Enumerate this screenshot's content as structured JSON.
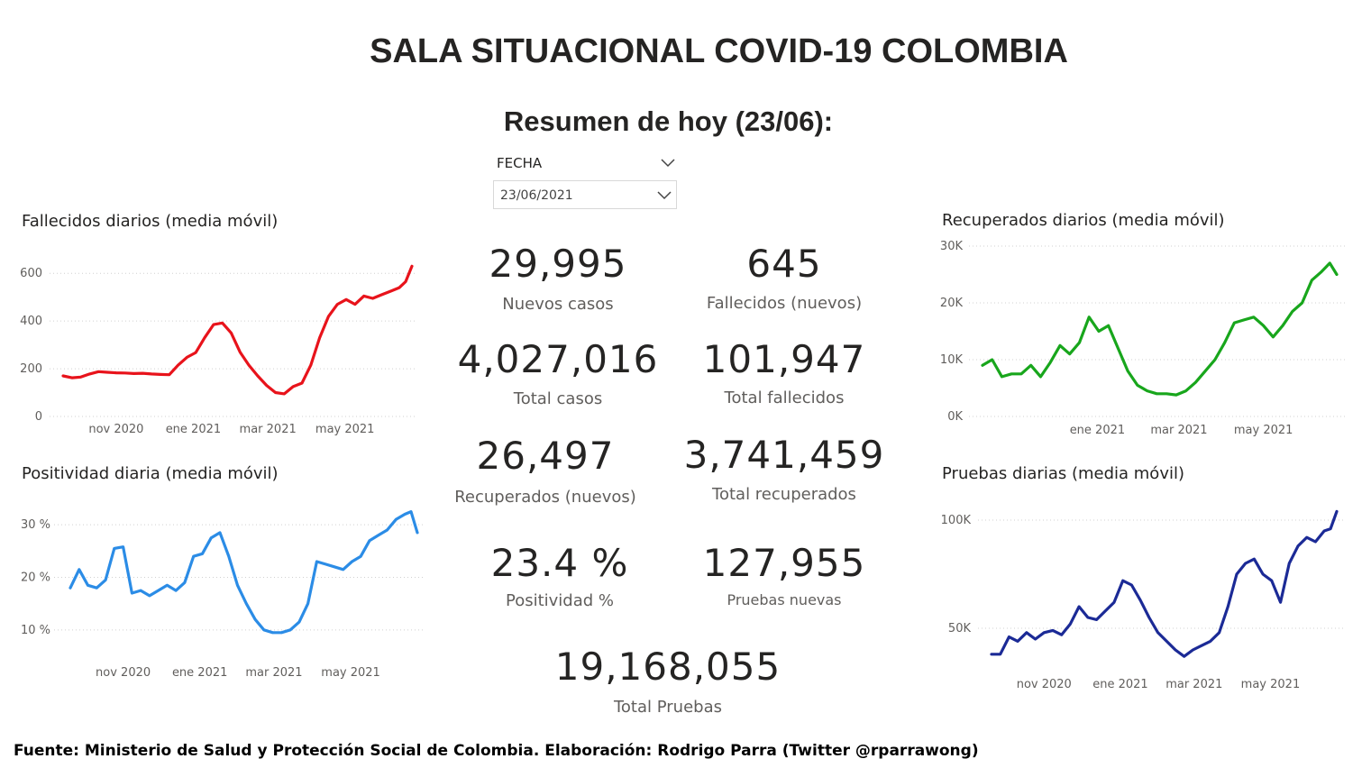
{
  "title": "SALA SITUACIONAL COVID-19 COLOMBIA",
  "subtitle": "Resumen de hoy (23/06):",
  "slicer": {
    "label": "FECHA",
    "value": "23/06/2021"
  },
  "kpis": [
    {
      "value": "29,995",
      "label": "Nuevos casos"
    },
    {
      "value": "645",
      "label": "Fallecidos (nuevos)"
    },
    {
      "value": "4,027,016",
      "label": "Total casos"
    },
    {
      "value": "101,947",
      "label": "Total fallecidos"
    },
    {
      "value": "26,497",
      "label": "Recuperados (nuevos)"
    },
    {
      "value": "3,741,459",
      "label": "Total recuperados"
    },
    {
      "value": "23.4 %",
      "label": "Positividad %"
    },
    {
      "value": "127,955",
      "label": "Pruebas nuevas"
    },
    {
      "value": "19,168,055",
      "label": "Total Pruebas"
    }
  ],
  "colors": {
    "fallecidos": "#e8131b",
    "positividad": "#2b8ce6",
    "recuperados": "#18a61c",
    "pruebas": "#1b2a96",
    "grid": "#d0d0d0"
  },
  "footer": "Fuente: Ministerio de Salud y Protección Social de Colombia. Elaboración: Rodrigo Parra (Twitter @rparrawong)",
  "chart_data": [
    {
      "id": "fallecidos",
      "type": "line",
      "title": "Fallecidos diarios (media móvil)",
      "x_range": [
        "2020-09-20",
        "2021-06-23"
      ],
      "ylim": [
        0,
        650
      ],
      "yticks": [
        0,
        200,
        400,
        600
      ],
      "ytick_labels": [
        "0",
        "200",
        "400",
        "600"
      ],
      "xticks": [
        "2020-11-01",
        "2021-01-01",
        "2021-03-01",
        "2021-05-01"
      ],
      "xtick_labels": [
        "nov 2020",
        "ene 2021",
        "mar 2021",
        "may 2021"
      ],
      "grid": true,
      "series": [
        {
          "x": [
            "2020-09-20",
            "2020-09-27",
            "2020-10-04",
            "2020-10-11",
            "2020-10-18",
            "2020-10-25",
            "2020-11-01",
            "2020-11-08",
            "2020-11-15",
            "2020-11-22",
            "2020-11-29",
            "2020-12-06",
            "2020-12-13",
            "2020-12-20",
            "2020-12-27",
            "2021-01-03",
            "2021-01-10",
            "2021-01-17",
            "2021-01-24",
            "2021-01-31",
            "2021-02-07",
            "2021-02-14",
            "2021-02-21",
            "2021-02-28",
            "2021-03-07",
            "2021-03-14",
            "2021-03-21",
            "2021-03-28",
            "2021-04-04",
            "2021-04-11",
            "2021-04-18",
            "2021-04-25",
            "2021-05-02",
            "2021-05-09",
            "2021-05-16",
            "2021-05-23",
            "2021-05-30",
            "2021-06-06",
            "2021-06-13",
            "2021-06-18",
            "2021-06-23"
          ],
          "values": [
            170,
            162,
            165,
            178,
            188,
            185,
            183,
            182,
            180,
            181,
            178,
            176,
            175,
            215,
            248,
            268,
            330,
            385,
            392,
            350,
            270,
            215,
            170,
            130,
            100,
            95,
            125,
            140,
            215,
            330,
            420,
            470,
            490,
            470,
            505,
            495,
            510,
            525,
            540,
            565,
            630
          ]
        }
      ]
    },
    {
      "id": "positividad",
      "type": "line",
      "title": "Positividad diaria (media móvil)",
      "x_range": [
        "2020-09-20",
        "2021-06-23"
      ],
      "ylim": [
        5,
        35
      ],
      "yticks": [
        10,
        20,
        30
      ],
      "ytick_labels": [
        "10 %",
        "20 %",
        "30 %"
      ],
      "xticks": [
        "2020-11-01",
        "2021-01-01",
        "2021-03-01",
        "2021-05-01"
      ],
      "xtick_labels": [
        "nov 2020",
        "ene 2021",
        "mar 2021",
        "may 2021"
      ],
      "grid": true,
      "series": [
        {
          "x": [
            "2020-09-20",
            "2020-09-27",
            "2020-10-04",
            "2020-10-11",
            "2020-10-18",
            "2020-10-25",
            "2020-11-01",
            "2020-11-08",
            "2020-11-15",
            "2020-11-22",
            "2020-11-29",
            "2020-12-06",
            "2020-12-13",
            "2020-12-20",
            "2020-12-27",
            "2021-01-03",
            "2021-01-10",
            "2021-01-17",
            "2021-01-24",
            "2021-01-31",
            "2021-02-07",
            "2021-02-14",
            "2021-02-21",
            "2021-02-28",
            "2021-03-07",
            "2021-03-14",
            "2021-03-21",
            "2021-03-28",
            "2021-04-04",
            "2021-04-11",
            "2021-04-18",
            "2021-04-25",
            "2021-05-02",
            "2021-05-09",
            "2021-05-16",
            "2021-05-23",
            "2021-05-30",
            "2021-06-06",
            "2021-06-13",
            "2021-06-18",
            "2021-06-23"
          ],
          "values": [
            18,
            21.5,
            18.5,
            18,
            19.5,
            25.5,
            25.8,
            17,
            17.5,
            16.5,
            17.5,
            18.5,
            17.5,
            19,
            24,
            24.5,
            27.5,
            28.5,
            24,
            18.5,
            15,
            12,
            10,
            9.5,
            9.5,
            10,
            11.5,
            15,
            23,
            22.5,
            22,
            21.5,
            23,
            24,
            27,
            28,
            29,
            31,
            32,
            32.5,
            28.5
          ]
        }
      ]
    },
    {
      "id": "recuperados",
      "type": "line",
      "title": "Recuperados diarios (media móvil)",
      "x_range": [
        "2020-10-10",
        "2021-06-23"
      ],
      "ylim": [
        0,
        30000
      ],
      "yticks": [
        0,
        10000,
        20000,
        30000
      ],
      "ytick_labels": [
        "0K",
        "10K",
        "20K",
        "30K"
      ],
      "xticks": [
        "2021-01-01",
        "2021-03-01",
        "2021-05-01"
      ],
      "xtick_labels": [
        "ene 2021",
        "mar 2021",
        "may 2021"
      ],
      "grid": true,
      "series": [
        {
          "x": [
            "2020-10-10",
            "2020-10-17",
            "2020-10-24",
            "2020-10-31",
            "2020-11-07",
            "2020-11-14",
            "2020-11-21",
            "2020-11-28",
            "2020-12-05",
            "2020-12-12",
            "2020-12-19",
            "2020-12-26",
            "2021-01-02",
            "2021-01-09",
            "2021-01-16",
            "2021-01-23",
            "2021-01-30",
            "2021-02-06",
            "2021-02-13",
            "2021-02-20",
            "2021-02-27",
            "2021-03-06",
            "2021-03-13",
            "2021-03-20",
            "2021-03-27",
            "2021-04-03",
            "2021-04-10",
            "2021-04-17",
            "2021-04-24",
            "2021-05-01",
            "2021-05-08",
            "2021-05-15",
            "2021-05-22",
            "2021-05-29",
            "2021-06-05",
            "2021-06-12",
            "2021-06-18",
            "2021-06-23"
          ],
          "values": [
            9000,
            10000,
            7000,
            7500,
            7500,
            9000,
            7000,
            9500,
            12500,
            11000,
            13000,
            17500,
            15000,
            16000,
            12000,
            8000,
            5500,
            4500,
            4000,
            4000,
            3800,
            4500,
            6000,
            8000,
            10000,
            13000,
            16500,
            17000,
            17500,
            16000,
            14000,
            16000,
            18500,
            20000,
            24000,
            25500,
            27000,
            25000
          ]
        }
      ]
    },
    {
      "id": "pruebas",
      "type": "line",
      "title": "Pruebas diarias (media móvil)",
      "x_range": [
        "2020-09-20",
        "2021-06-23"
      ],
      "ylim": [
        25000,
        110000
      ],
      "yticks": [
        50000,
        100000
      ],
      "ytick_labels": [
        "50K",
        "100K"
      ],
      "xticks": [
        "2020-11-01",
        "2021-01-01",
        "2021-03-01",
        "2021-05-01"
      ],
      "xtick_labels": [
        "nov 2020",
        "ene 2021",
        "mar 2021",
        "may 2021"
      ],
      "grid": true,
      "series": [
        {
          "x": [
            "2020-09-20",
            "2020-09-27",
            "2020-10-04",
            "2020-10-11",
            "2020-10-18",
            "2020-10-25",
            "2020-11-01",
            "2020-11-08",
            "2020-11-15",
            "2020-11-22",
            "2020-11-29",
            "2020-12-06",
            "2020-12-13",
            "2020-12-20",
            "2020-12-27",
            "2021-01-03",
            "2021-01-10",
            "2021-01-17",
            "2021-01-24",
            "2021-01-31",
            "2021-02-07",
            "2021-02-14",
            "2021-02-21",
            "2021-02-28",
            "2021-03-07",
            "2021-03-14",
            "2021-03-21",
            "2021-03-28",
            "2021-04-04",
            "2021-04-11",
            "2021-04-18",
            "2021-04-25",
            "2021-05-02",
            "2021-05-09",
            "2021-05-16",
            "2021-05-23",
            "2021-05-30",
            "2021-06-06",
            "2021-06-13",
            "2021-06-18",
            "2021-06-23"
          ],
          "values": [
            38000,
            38000,
            46000,
            44000,
            48000,
            45000,
            48000,
            49000,
            47000,
            52000,
            60000,
            55000,
            54000,
            58000,
            62000,
            72000,
            70000,
            63000,
            55000,
            48000,
            44000,
            40000,
            37000,
            40000,
            42000,
            44000,
            48000,
            60000,
            75000,
            80000,
            82000,
            75000,
            72000,
            62000,
            80000,
            88000,
            92000,
            90000,
            95000,
            96000,
            104000
          ]
        }
      ]
    }
  ]
}
